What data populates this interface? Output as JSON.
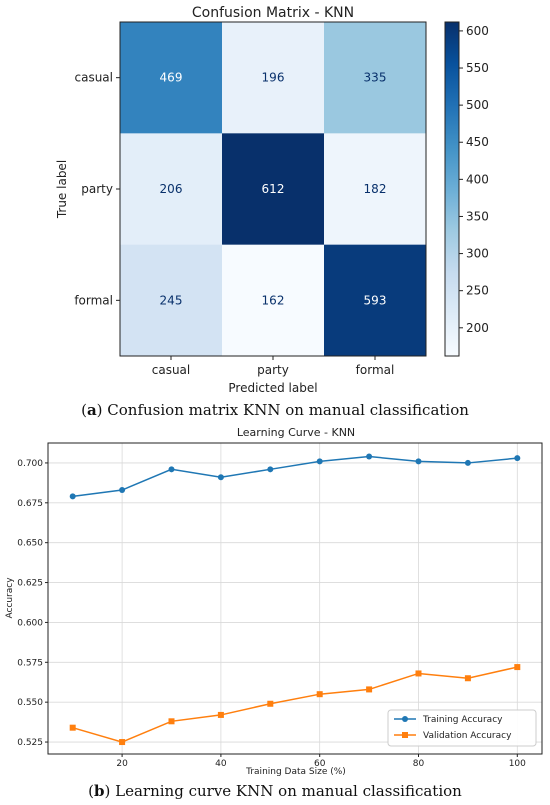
{
  "chart_data": [
    {
      "type": "heatmap",
      "title": "Confusion Matrix - KNN",
      "xlabel": "Predicted label",
      "ylabel": "True label",
      "x_categories": [
        "casual",
        "party",
        "formal"
      ],
      "y_categories": [
        "casual",
        "party",
        "formal"
      ],
      "values": [
        [
          469,
          196,
          335
        ],
        [
          206,
          612,
          182
        ],
        [
          245,
          162,
          593
        ]
      ],
      "colorbar": {
        "colormap": "Blues",
        "range": [
          162,
          612
        ],
        "ticks": [
          200,
          250,
          300,
          350,
          400,
          450,
          500,
          550,
          600
        ]
      },
      "caption": {
        "label": "a",
        "text": " Confusion matrix KNN on manual classification"
      }
    },
    {
      "type": "line",
      "title": "Learning Curve - KNN",
      "xlabel": "Training Data Size (%)",
      "ylabel": "Accuracy",
      "x": [
        10,
        20,
        30,
        40,
        50,
        60,
        70,
        80,
        90,
        100
      ],
      "xlim": [
        5,
        105
      ],
      "ylim": [
        0.5175,
        0.7125
      ],
      "x_ticks": [
        20,
        40,
        60,
        80,
        100
      ],
      "y_ticks": [
        0.525,
        0.55,
        0.575,
        0.6,
        0.625,
        0.65,
        0.675,
        0.7
      ],
      "grid": true,
      "legend_position": "bottom-right",
      "series": [
        {
          "name": "Training Accuracy",
          "color": "#1f77b4",
          "marker": "circle",
          "values": [
            0.679,
            0.683,
            0.696,
            0.691,
            0.696,
            0.701,
            0.704,
            0.701,
            0.7,
            0.703
          ]
        },
        {
          "name": "Validation Accuracy",
          "color": "#ff7f0e",
          "marker": "square",
          "values": [
            0.534,
            0.525,
            0.538,
            0.542,
            0.549,
            0.555,
            0.558,
            0.568,
            0.565,
            0.572
          ]
        }
      ],
      "caption": {
        "label": "b",
        "text": " Learning curve KNN on manual classification"
      }
    }
  ]
}
